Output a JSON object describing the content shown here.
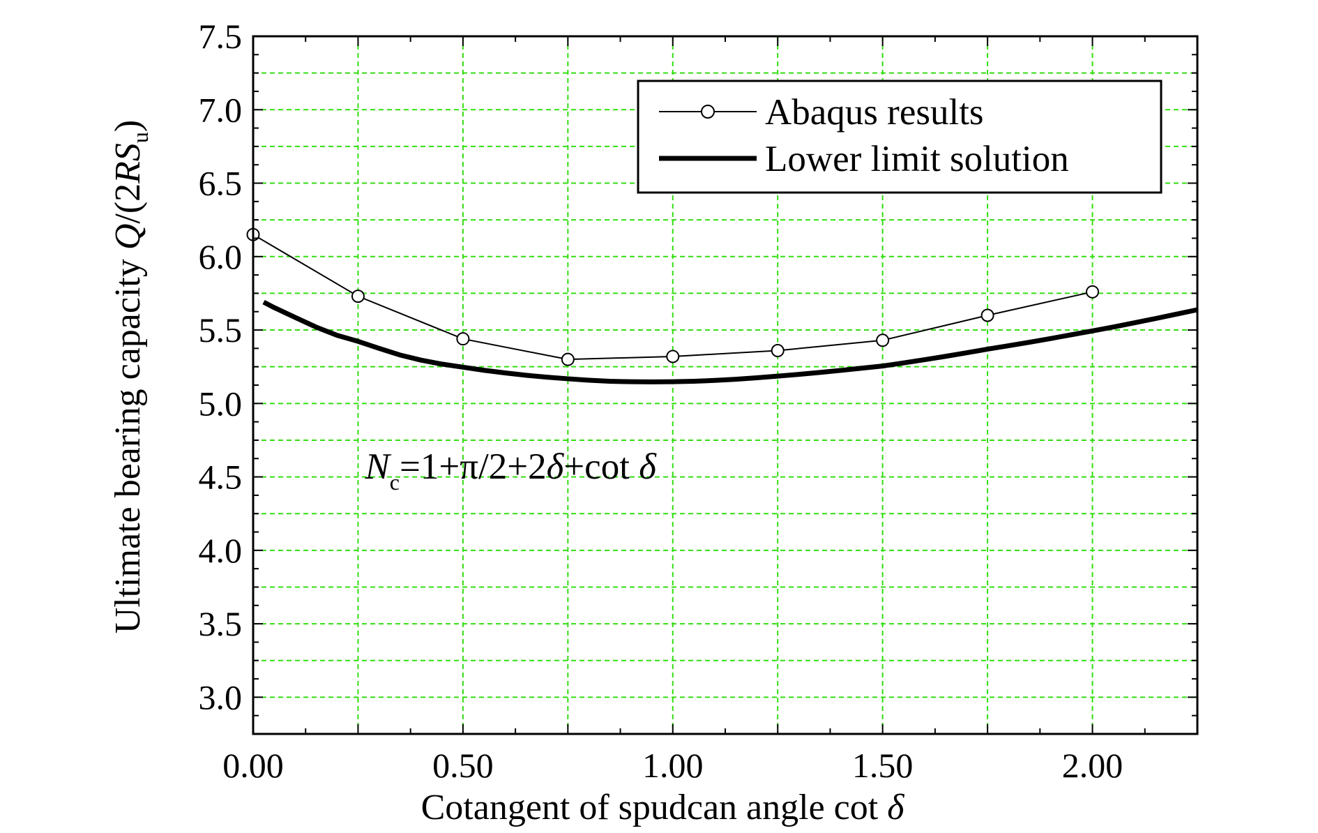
{
  "chart_data": {
    "type": "line",
    "title": "",
    "xlabel": "Cotangent of spudcan angle cot δ",
    "ylabel": "Ultimate bearing capacity Q/(2RS_u)",
    "xlim": [
      0.0,
      2.25
    ],
    "ylim": [
      2.75,
      7.5
    ],
    "grid": true,
    "legend_position": "top-right",
    "x_ticks": [
      "0.00",
      "0.50",
      "1.00",
      "1.50",
      "2.00"
    ],
    "y_ticks": [
      "3.0",
      "3.5",
      "4.0",
      "4.5",
      "5.0",
      "5.5",
      "6.0",
      "6.5",
      "7.0",
      "7.5"
    ],
    "series": [
      {
        "name": "Abaqus results",
        "style": "line-with-open-circles",
        "color": "#000000",
        "x": [
          0.0,
          0.25,
          0.5,
          0.75,
          1.0,
          1.25,
          1.5,
          1.75,
          2.0
        ],
        "y": [
          6.15,
          5.73,
          5.44,
          5.3,
          5.32,
          5.36,
          5.43,
          5.6,
          5.76
        ]
      },
      {
        "name": "Lower limit solution",
        "style": "thick-line",
        "color": "#000000",
        "x": [
          0.025,
          0.05,
          0.1,
          0.15,
          0.2,
          0.25,
          0.3,
          0.35,
          0.4,
          0.45,
          0.5,
          0.55,
          0.6,
          0.65,
          0.7,
          0.75,
          0.8,
          0.85,
          0.9,
          0.95,
          1.0,
          1.05,
          1.1,
          1.15,
          1.2,
          1.25,
          1.3,
          1.35,
          1.4,
          1.45,
          1.5,
          1.55,
          1.6,
          1.65,
          1.7,
          1.75,
          1.8,
          1.85,
          1.9,
          1.95,
          2.0,
          2.05,
          2.1,
          2.15,
          2.2,
          2.25
        ],
        "y": [
          5.69,
          5.653,
          5.586,
          5.52,
          5.464,
          5.423,
          5.375,
          5.33,
          5.295,
          5.268,
          5.247,
          5.226,
          5.208,
          5.192,
          5.179,
          5.168,
          5.158,
          5.151,
          5.148,
          5.147,
          5.148,
          5.151,
          5.157,
          5.165,
          5.175,
          5.186,
          5.198,
          5.211,
          5.225,
          5.24,
          5.255,
          5.276,
          5.298,
          5.321,
          5.345,
          5.37,
          5.393,
          5.417,
          5.442,
          5.468,
          5.494,
          5.521,
          5.549,
          5.578,
          5.608,
          5.638
        ]
      }
    ],
    "annotation": {
      "text_N": "N",
      "text_sub": "c",
      "text_expr_1": "=1+π/2+2",
      "text_delta_1": "δ",
      "text_expr_2": "+cot ",
      "text_delta_2": "δ",
      "x": 0.25,
      "y": 4.57
    }
  },
  "axis_text": {
    "xlabel_main": "Cotangent of spudcan angle cot ",
    "xlabel_delta": "δ",
    "ylabel_main": "Ultimate bearing capacity ",
    "ylabel_Q": "Q",
    "ylabel_slash": "/(2",
    "ylabel_RS": "RS",
    "ylabel_sub": "u",
    "ylabel_close": ")"
  },
  "colors": {
    "grid": "#33dd11",
    "axis": "#000000",
    "background": "#ffffff"
  }
}
